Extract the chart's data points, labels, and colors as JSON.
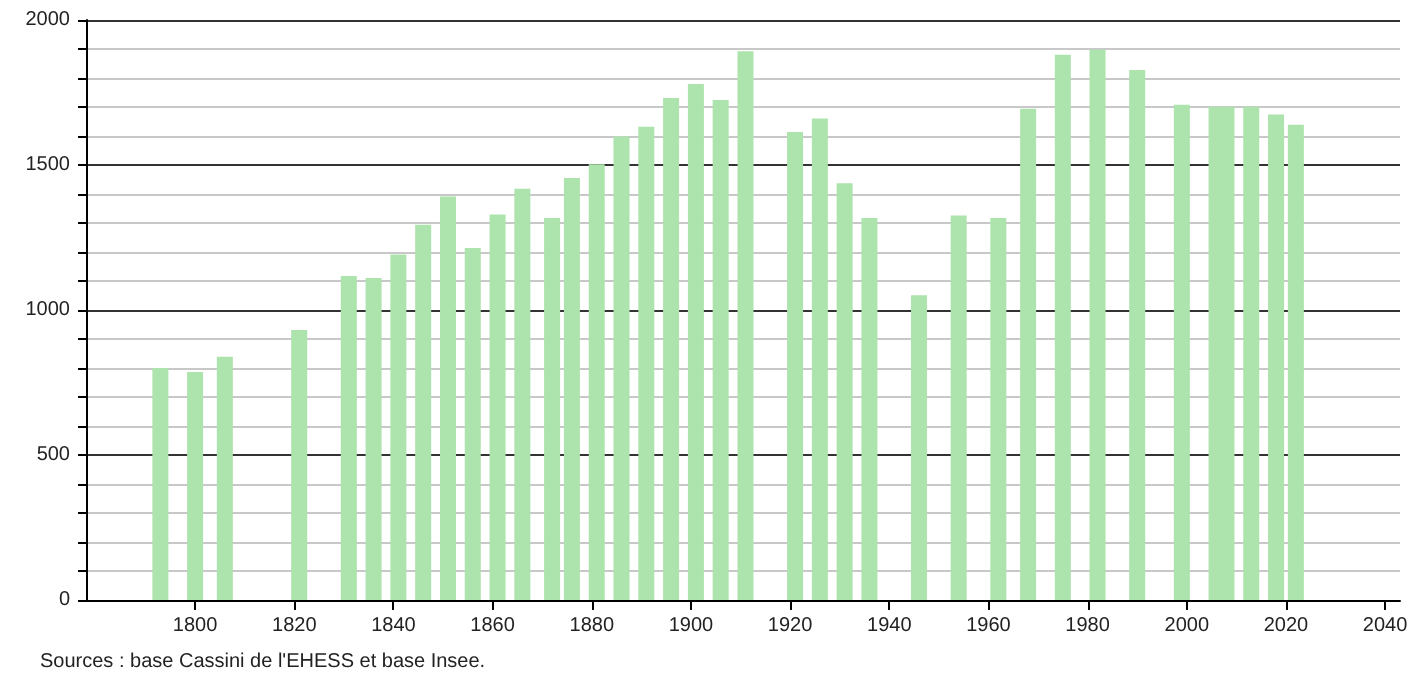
{
  "chart_data": {
    "type": "bar",
    "color": "#ade3ad",
    "x": [
      1793,
      1800,
      1806,
      1821,
      1831,
      1836,
      1841,
      1846,
      1851,
      1856,
      1861,
      1866,
      1872,
      1876,
      1881,
      1886,
      1891,
      1896,
      1901,
      1906,
      1911,
      1921,
      1926,
      1931,
      1936,
      1946,
      1954,
      1962,
      1968,
      1975,
      1982,
      1990,
      1999,
      2006,
      2008,
      2013,
      2018,
      2022
    ],
    "values": [
      800,
      786,
      839,
      931,
      1117,
      1110,
      1191,
      1294,
      1391,
      1214,
      1329,
      1418,
      1317,
      1455,
      1503,
      1598,
      1632,
      1731,
      1779,
      1724,
      1892,
      1614,
      1660,
      1437,
      1317,
      1051,
      1326,
      1317,
      1694,
      1880,
      1897,
      1828,
      1708,
      1701,
      1701,
      1701,
      1674,
      1639
    ],
    "xlim": [
      1778,
      2043
    ],
    "xticks": [
      1800,
      1820,
      1840,
      1860,
      1880,
      1900,
      1920,
      1940,
      1960,
      1980,
      2000,
      2020,
      2040
    ],
    "ylim": [
      0,
      2000
    ],
    "yticks": [
      0,
      {
        "value": 100,
        "label": null
      },
      {
        "value": 200,
        "label": null
      },
      {
        "value": 300,
        "label": null
      },
      {
        "value": 400,
        "label": null
      },
      500,
      {
        "value": 600,
        "label": null
      },
      {
        "value": 700,
        "label": null
      },
      {
        "value": 800,
        "label": null
      },
      {
        "value": 900,
        "label": null
      },
      1000,
      {
        "value": 1100,
        "label": null
      },
      {
        "value": 1200,
        "label": null
      },
      {
        "value": 1300,
        "label": null
      },
      {
        "value": 1400,
        "label": null
      },
      1500,
      {
        "value": 1600,
        "label": null
      },
      {
        "value": 1700,
        "label": null
      },
      {
        "value": 1800,
        "label": null
      },
      {
        "value": 1900,
        "label": null
      },
      2000
    ],
    "grid": "y",
    "annotations": [
      "Sources : base Cassini de l'EHESS et base Insee."
    ]
  }
}
